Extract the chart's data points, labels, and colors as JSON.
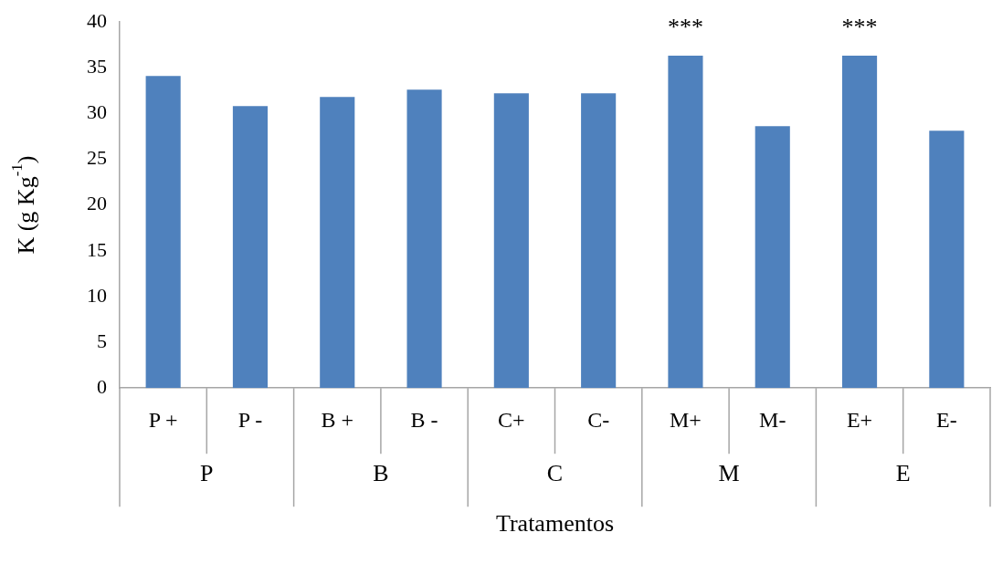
{
  "chart_data": {
    "type": "bar",
    "xlabel": "Tratamentos",
    "ylabel": "K (g Kg$^{-1}$)",
    "categories": [
      "P +",
      "P -",
      "B +",
      "B -",
      "C+",
      "C-",
      "M+",
      "M-",
      "E+",
      "E-"
    ],
    "values": [
      34.1,
      30.8,
      31.8,
      32.6,
      32.2,
      32.2,
      36.3,
      28.6,
      36.3,
      28.1
    ],
    "color": "#4f81bd",
    "ylim": [
      0,
      40
    ],
    "yticks": [
      0,
      5,
      10,
      15,
      20,
      25,
      30,
      35,
      40
    ],
    "grid": false,
    "legend": false,
    "annotations": [
      {
        "text": "***",
        "x": "M+",
        "y": 36.3
      },
      {
        "text": "***",
        "x": "E+",
        "y": 36.3
      },
      "P",
      "B",
      "C",
      "M",
      "E"
    ]
  }
}
